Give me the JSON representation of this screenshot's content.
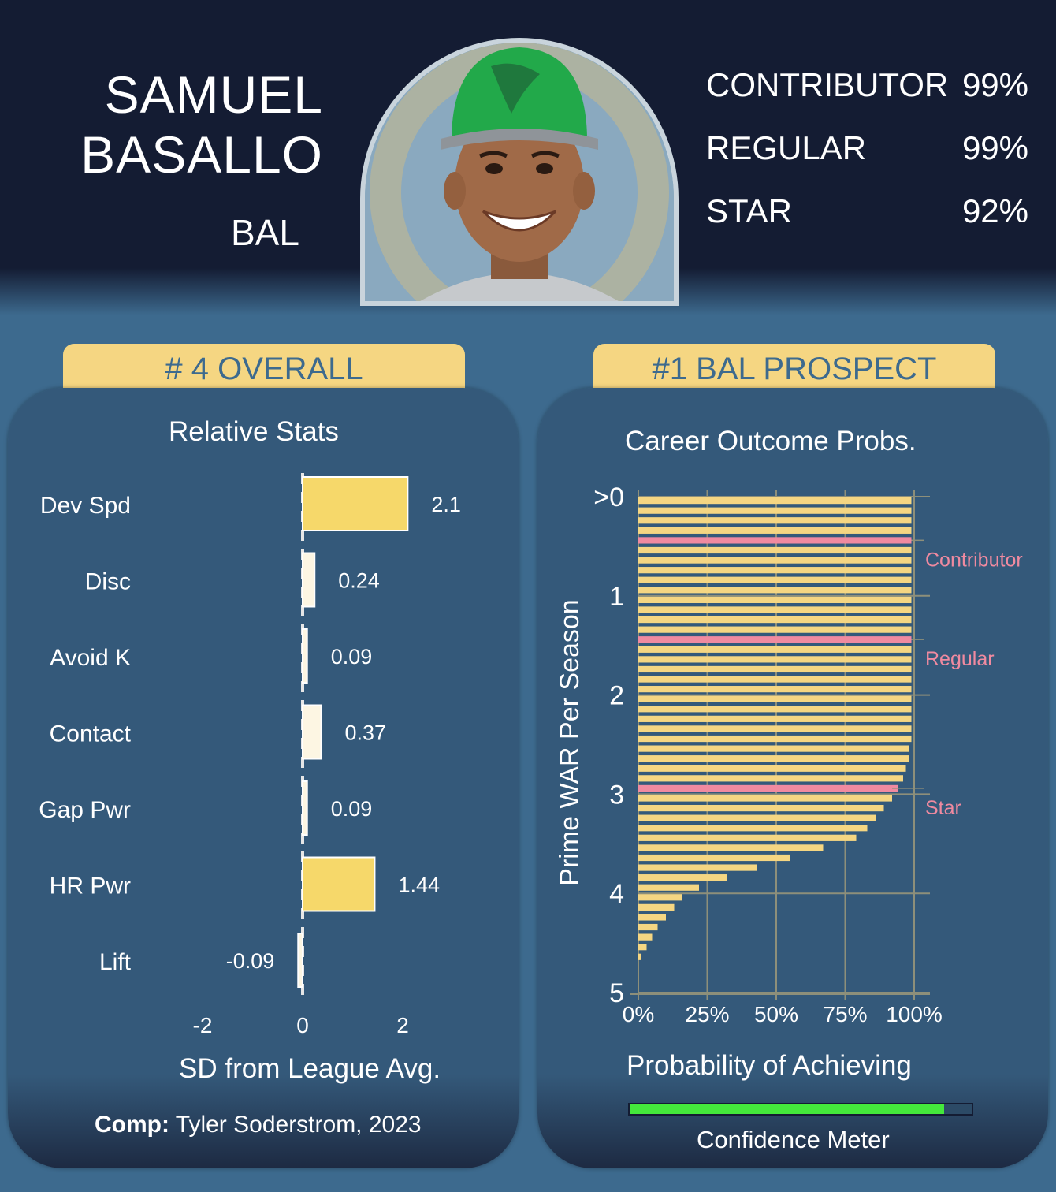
{
  "header": {
    "first_name": "SAMUEL",
    "last_name": "BASALLO",
    "team": "BAL",
    "outcomes": [
      {
        "label": "CONTRIBUTOR",
        "value": "99%"
      },
      {
        "label": "REGULAR",
        "value": "99%"
      },
      {
        "label": "STAR",
        "value": "92%"
      }
    ]
  },
  "tabs": {
    "overall": "# 4 OVERALL",
    "team_rank": "#1 BAL PROSPECT"
  },
  "left_panel": {
    "comp_label": "Comp:",
    "comp_value": "Tyler Soderstrom, 2023"
  },
  "right_panel": {
    "confidence_label": "Confidence Meter",
    "confidence_value": 0.92
  },
  "colors": {
    "background": "#3d6a8e",
    "header": "#141c33",
    "accent_yellow": "#f5d682",
    "bar_light": "#fdf6e3",
    "reference_pink": "#f08aa0",
    "meter_green": "#44e83c"
  },
  "chart_data": [
    {
      "type": "bar",
      "orientation": "horizontal",
      "title": "Relative Stats",
      "xlabel": "SD from League Avg.",
      "categories": [
        "Dev Spd",
        "Disc",
        "Avoid K",
        "Contact",
        "Gap Pwr",
        "HR Pwr",
        "Lift"
      ],
      "values": [
        2.1,
        0.24,
        0.09,
        0.37,
        0.09,
        1.44,
        -0.09
      ],
      "value_labels": [
        "2.1",
        "0.24",
        "0.09",
        "0.37",
        "0.09",
        "1.44",
        "-0.09"
      ],
      "xlim": [
        -2,
        2.6
      ],
      "xticks": [
        "-2",
        "0",
        "2"
      ]
    },
    {
      "type": "bar",
      "orientation": "horizontal",
      "title": "Career Outcome Probs.",
      "xlabel": "Probability of Achieving",
      "ylabel": "Prime WAR Per Season",
      "xticks": [
        "0%",
        "25%",
        "50%",
        "75%",
        "100%"
      ],
      "yticks": [
        ">0",
        "1",
        "2",
        "3",
        "4",
        "5"
      ],
      "ylim": [
        0,
        5
      ],
      "step": 0.1,
      "values": [
        99,
        99,
        99,
        99,
        99,
        99,
        99,
        99,
        99,
        99,
        99,
        99,
        99,
        99,
        99,
        99,
        99,
        99,
        99,
        99,
        99,
        99,
        99,
        99,
        99,
        98,
        98,
        97,
        96,
        94,
        92,
        89,
        86,
        83,
        79,
        67,
        55,
        43,
        32,
        22,
        16,
        13,
        10,
        7,
        5,
        3,
        1
      ],
      "reference_lines": [
        {
          "label": "Contributor",
          "war": 0.4,
          "value": 99
        },
        {
          "label": "Regular",
          "war": 1.4,
          "value": 99
        },
        {
          "label": "Star",
          "war": 2.9,
          "value": 92
        }
      ]
    }
  ]
}
